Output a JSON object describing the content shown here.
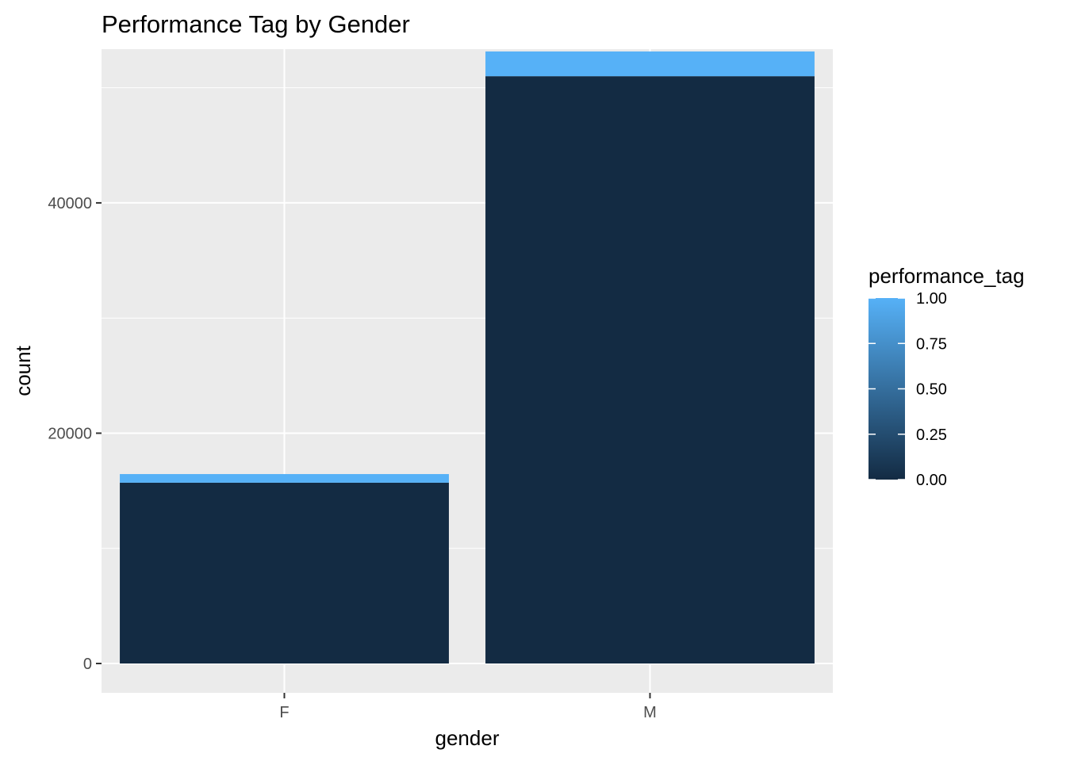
{
  "chart_data": {
    "type": "bar",
    "title": "Performance Tag by Gender",
    "xlabel": "gender",
    "ylabel": "count",
    "categories": [
      "F",
      "M"
    ],
    "series": [
      {
        "performance_tag": 0,
        "values": [
          15700,
          51000
        ]
      },
      {
        "performance_tag": 1,
        "values": [
          750,
          2150
        ]
      }
    ],
    "stacked": true,
    "ylim": [
      0,
      53350
    ],
    "yticks": [
      0,
      20000,
      40000
    ],
    "ytick_labels": [
      "0",
      "20000",
      "40000"
    ],
    "grid": true,
    "legend": {
      "title": "performance_tag",
      "type": "colorbar",
      "placement": "right",
      "range": [
        0,
        1
      ],
      "ticks": [
        "0.00",
        "0.25",
        "0.50",
        "0.75",
        "1.00"
      ],
      "color_low": "#132B43",
      "color_high": "#56B1F7"
    },
    "panel_background": "#EBEBEB",
    "grid_color": "#FFFFFF"
  }
}
